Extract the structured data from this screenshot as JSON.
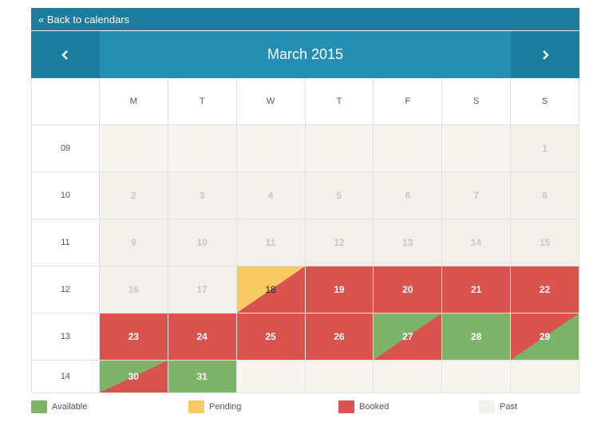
{
  "back_link": "« Back to calendars",
  "month_title": "March 2015",
  "nav": {
    "prev_icon": "chevron-left-icon",
    "next_icon": "chevron-right-icon"
  },
  "weekdays": [
    "M",
    "T",
    "W",
    "T",
    "F",
    "S",
    "S"
  ],
  "weeks": [
    {
      "num": "09",
      "days": [
        {
          "d": "",
          "s": "empty"
        },
        {
          "d": "",
          "s": "empty"
        },
        {
          "d": "",
          "s": "empty"
        },
        {
          "d": "",
          "s": "empty"
        },
        {
          "d": "",
          "s": "empty"
        },
        {
          "d": "",
          "s": "empty"
        },
        {
          "d": "1",
          "s": "past"
        }
      ]
    },
    {
      "num": "10",
      "days": [
        {
          "d": "2",
          "s": "past"
        },
        {
          "d": "3",
          "s": "past"
        },
        {
          "d": "4",
          "s": "past"
        },
        {
          "d": "5",
          "s": "past"
        },
        {
          "d": "6",
          "s": "past"
        },
        {
          "d": "7",
          "s": "past"
        },
        {
          "d": "8",
          "s": "past"
        }
      ]
    },
    {
      "num": "11",
      "days": [
        {
          "d": "9",
          "s": "past"
        },
        {
          "d": "10",
          "s": "past"
        },
        {
          "d": "11",
          "s": "past"
        },
        {
          "d": "12",
          "s": "past"
        },
        {
          "d": "13",
          "s": "past"
        },
        {
          "d": "14",
          "s": "past"
        },
        {
          "d": "15",
          "s": "past"
        }
      ]
    },
    {
      "num": "12",
      "days": [
        {
          "d": "16",
          "s": "past"
        },
        {
          "d": "17",
          "s": "past"
        },
        {
          "d": "18",
          "s": "pend-book"
        },
        {
          "d": "19",
          "s": "booked"
        },
        {
          "d": "20",
          "s": "booked"
        },
        {
          "d": "21",
          "s": "booked"
        },
        {
          "d": "22",
          "s": "booked"
        }
      ]
    },
    {
      "num": "13",
      "days": [
        {
          "d": "23",
          "s": "booked"
        },
        {
          "d": "24",
          "s": "booked"
        },
        {
          "d": "25",
          "s": "booked"
        },
        {
          "d": "26",
          "s": "booked"
        },
        {
          "d": "27",
          "s": "book-avail"
        },
        {
          "d": "28",
          "s": "available"
        },
        {
          "d": "29",
          "s": "avail-book"
        }
      ]
    },
    {
      "num": "14",
      "days": [
        {
          "d": "30",
          "s": "book-avail"
        },
        {
          "d": "31",
          "s": "available"
        },
        {
          "d": "",
          "s": "empty"
        },
        {
          "d": "",
          "s": "empty"
        },
        {
          "d": "",
          "s": "empty"
        },
        {
          "d": "",
          "s": "empty"
        },
        {
          "d": "",
          "s": "empty"
        }
      ]
    }
  ],
  "legend": [
    {
      "label": "Available",
      "color": "#7eb36a"
    },
    {
      "label": "Pending",
      "color": "#f7cb62"
    },
    {
      "label": "Booked",
      "color": "#d9534f"
    },
    {
      "label": "Past",
      "color": "#f1f0eb"
    }
  ]
}
